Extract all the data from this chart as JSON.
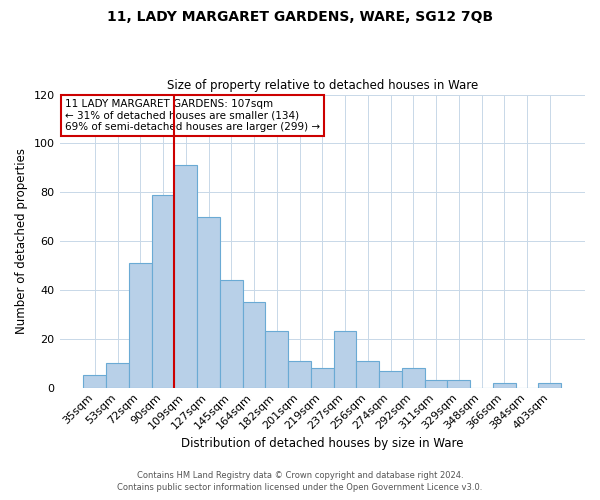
{
  "title": "11, LADY MARGARET GARDENS, WARE, SG12 7QB",
  "subtitle": "Size of property relative to detached houses in Ware",
  "xlabel": "Distribution of detached houses by size in Ware",
  "ylabel": "Number of detached properties",
  "bar_labels": [
    "35sqm",
    "53sqm",
    "72sqm",
    "90sqm",
    "109sqm",
    "127sqm",
    "145sqm",
    "164sqm",
    "182sqm",
    "201sqm",
    "219sqm",
    "237sqm",
    "256sqm",
    "274sqm",
    "292sqm",
    "311sqm",
    "329sqm",
    "348sqm",
    "366sqm",
    "384sqm",
    "403sqm"
  ],
  "bar_heights": [
    5,
    10,
    51,
    79,
    91,
    70,
    44,
    35,
    23,
    11,
    8,
    23,
    11,
    7,
    8,
    3,
    3,
    0,
    2,
    0,
    2
  ],
  "bar_color": "#b8d0e8",
  "bar_edge_color": "#6aaad4",
  "ylim": [
    0,
    120
  ],
  "yticks": [
    0,
    20,
    40,
    60,
    80,
    100,
    120
  ],
  "property_line_color": "#cc0000",
  "property_line_index": 4,
  "annotation_title": "11 LADY MARGARET GARDENS: 107sqm",
  "annotation_line1": "← 31% of detached houses are smaller (134)",
  "annotation_line2": "69% of semi-detached houses are larger (299) →",
  "annotation_box_color": "#ffffff",
  "annotation_box_edge": "#cc0000",
  "footer1": "Contains HM Land Registry data © Crown copyright and database right 2024.",
  "footer2": "Contains public sector information licensed under the Open Government Licence v3.0.",
  "background_color": "#ffffff",
  "grid_color": "#c8d8e8"
}
